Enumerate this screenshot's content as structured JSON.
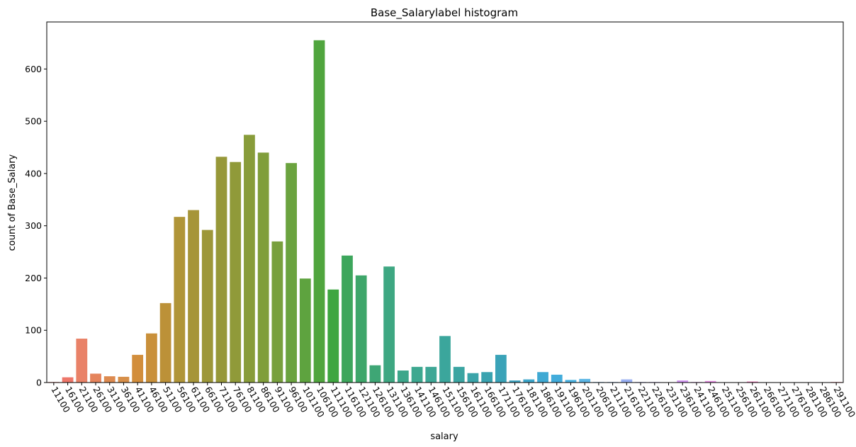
{
  "chart_data": {
    "type": "bar",
    "title": "Base_Salarylabel histogram",
    "xlabel": "salary",
    "ylabel": "count of Base_Salary",
    "ylim": [
      0,
      690
    ],
    "yticks": [
      0,
      100,
      200,
      300,
      400,
      500,
      600
    ],
    "grid": false,
    "categories": [
      "11100",
      "16100",
      "21100",
      "26100",
      "31100",
      "36100",
      "41100",
      "46100",
      "51100",
      "56100",
      "61100",
      "66100",
      "71100",
      "76100",
      "81100",
      "86100",
      "91100",
      "96100",
      "101100",
      "106100",
      "111100",
      "116100",
      "121100",
      "126100",
      "131100",
      "136100",
      "141100",
      "146100",
      "151100",
      "156100",
      "161100",
      "166100",
      "171100",
      "176100",
      "181100",
      "186100",
      "191100",
      "196100",
      "201100",
      "206100",
      "211100",
      "216100",
      "221100",
      "226100",
      "231100",
      "236100",
      "241100",
      "246100",
      "251100",
      "256100",
      "261100",
      "266100",
      "271100",
      "276100",
      "281100",
      "286100",
      "291100"
    ],
    "values": [
      1,
      10,
      84,
      17,
      12,
      11,
      53,
      94,
      152,
      317,
      330,
      292,
      432,
      422,
      474,
      440,
      270,
      420,
      199,
      655,
      178,
      243,
      205,
      33,
      222,
      23,
      30,
      30,
      89,
      30,
      18,
      20,
      53,
      4,
      6,
      20,
      15,
      5,
      7,
      1,
      1,
      6,
      1,
      1,
      0,
      4,
      1,
      3,
      0,
      0,
      2,
      0,
      0,
      0,
      0,
      0,
      1
    ],
    "colors": [
      "#f0766e",
      "#ee776a",
      "#e98268",
      "#e5845c",
      "#dd8a4f",
      "#d78f49",
      "#d28e3c",
      "#c9903a",
      "#bc9138",
      "#b09538",
      "#a69539",
      "#9d9739",
      "#979839",
      "#909a39",
      "#889c3a",
      "#809e3b",
      "#78a03d",
      "#6ba33f",
      "#5ea33f",
      "#50a53e",
      "#3ea640",
      "#3da65c",
      "#3ea66a",
      "#3ea675",
      "#3ea782",
      "#3da78b",
      "#3da890",
      "#3ea796",
      "#3ba69c",
      "#3ba5a2",
      "#3aa4a9",
      "#3aa3b0",
      "#3aa3b8",
      "#3ea4c1",
      "#3ca6cb",
      "#3fa9d3",
      "#42acdb",
      "#4ab2e1",
      "#5cb6e5",
      "#73b7ec",
      "#85b5f0",
      "#98aff2",
      "#a9a9f3",
      "#b8a2f3",
      "#c69bf3",
      "#d094f0",
      "#db8fea",
      "#e38be1",
      "#e986d6",
      "#ed83cb",
      "#ef84c0",
      "#f182b6",
      "#f280ac",
      "#f37ea2",
      "#f37c97",
      "#f37b8c",
      "#f27b80"
    ]
  }
}
